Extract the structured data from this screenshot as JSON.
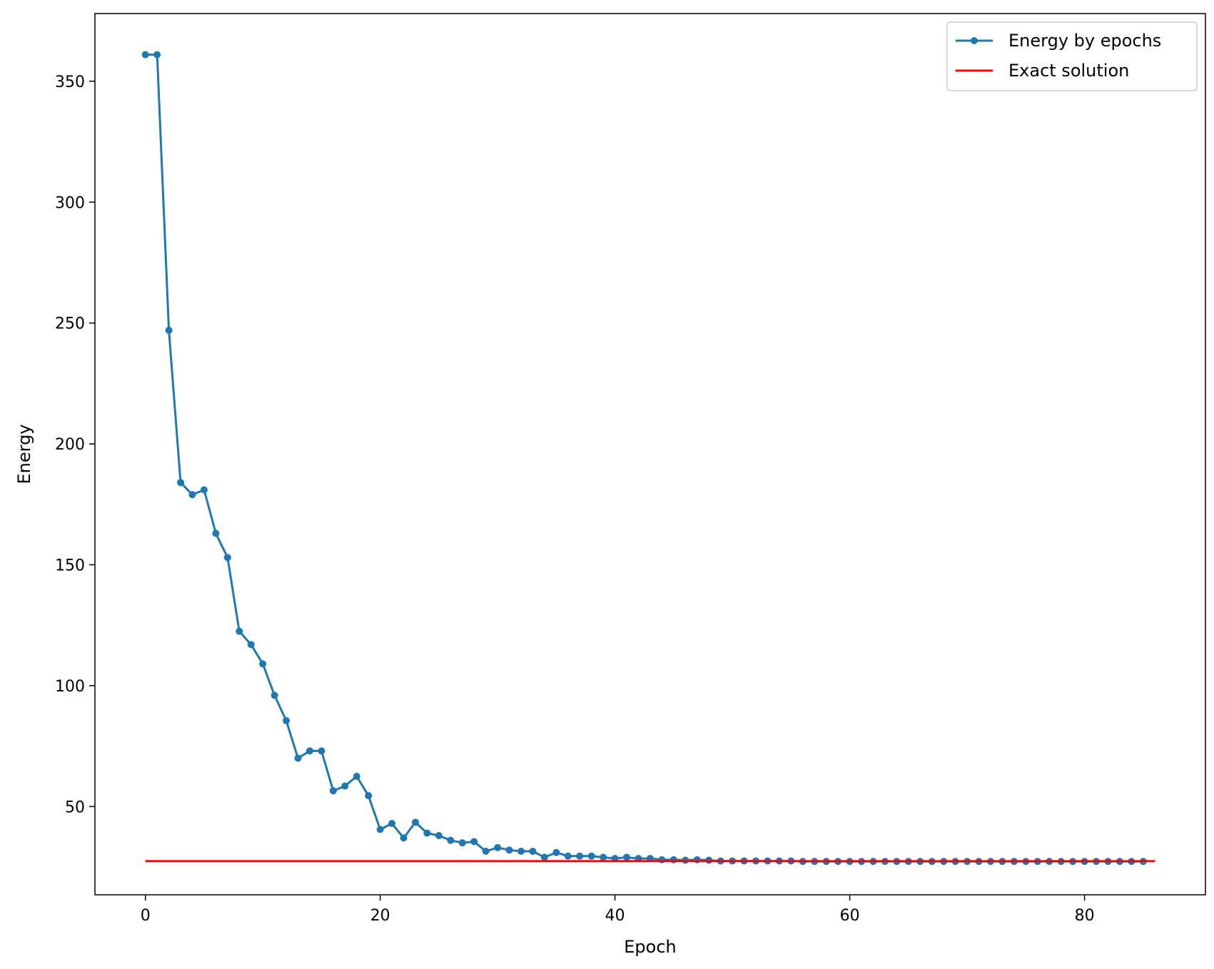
{
  "chart_data": {
    "type": "line",
    "title": "",
    "xlabel": "Epoch",
    "ylabel": "Energy",
    "xlim": [
      -4.3,
      90.3
    ],
    "ylim": [
      13.5,
      378
    ],
    "xticks": [
      0,
      20,
      40,
      60,
      80
    ],
    "yticks": [
      50,
      100,
      150,
      200,
      250,
      300,
      350
    ],
    "grid": false,
    "legend_position": "top-right",
    "series": [
      {
        "name": "Energy by epochs",
        "color": "#1f77b4",
        "marker": "point",
        "x": [
          0,
          1,
          2,
          3,
          4,
          5,
          6,
          7,
          8,
          9,
          10,
          11,
          12,
          13,
          14,
          15,
          16,
          17,
          18,
          19,
          20,
          21,
          22,
          23,
          24,
          25,
          26,
          27,
          28,
          29,
          30,
          31,
          32,
          33,
          34,
          35,
          36,
          37,
          38,
          39,
          40,
          41,
          42,
          43,
          44,
          45,
          46,
          47,
          48,
          49,
          50,
          51,
          52,
          53,
          54,
          55,
          56,
          57,
          58,
          59,
          60,
          61,
          62,
          63,
          64,
          65,
          66,
          67,
          68,
          69,
          70,
          71,
          72,
          73,
          74,
          75,
          76,
          77,
          78,
          79,
          80,
          81,
          82,
          83,
          84,
          85
        ],
        "values": [
          361,
          361,
          247,
          184,
          179,
          181,
          163,
          153,
          122.5,
          117,
          109,
          96,
          85.5,
          70,
          73,
          73,
          56.5,
          58.5,
          62.5,
          54.5,
          40.5,
          43,
          37,
          43.5,
          39,
          38,
          36,
          35,
          35.5,
          31.5,
          33,
          32,
          31.5,
          31.5,
          29,
          31,
          29.5,
          29.5,
          29.5,
          29,
          28.5,
          29,
          28.5,
          28.5,
          28,
          28,
          27.8,
          28,
          27.8,
          27.5,
          27.5,
          27.5,
          27.5,
          27.5,
          27.5,
          27.5,
          27.3,
          27.3,
          27.3,
          27.3,
          27.3,
          27.3,
          27.3,
          27.3,
          27.3,
          27.3,
          27.3,
          27.3,
          27.3,
          27.3,
          27.3,
          27.3,
          27.3,
          27.3,
          27.3,
          27.3,
          27.3,
          27.3,
          27.3,
          27.3,
          27.3,
          27.3,
          27.3,
          27.3,
          27.3,
          27.3
        ]
      },
      {
        "name": "Exact solution",
        "color": "#ff0000",
        "marker": "none",
        "x": [
          0,
          86
        ],
        "values": [
          27.4,
          27.4
        ]
      }
    ]
  }
}
